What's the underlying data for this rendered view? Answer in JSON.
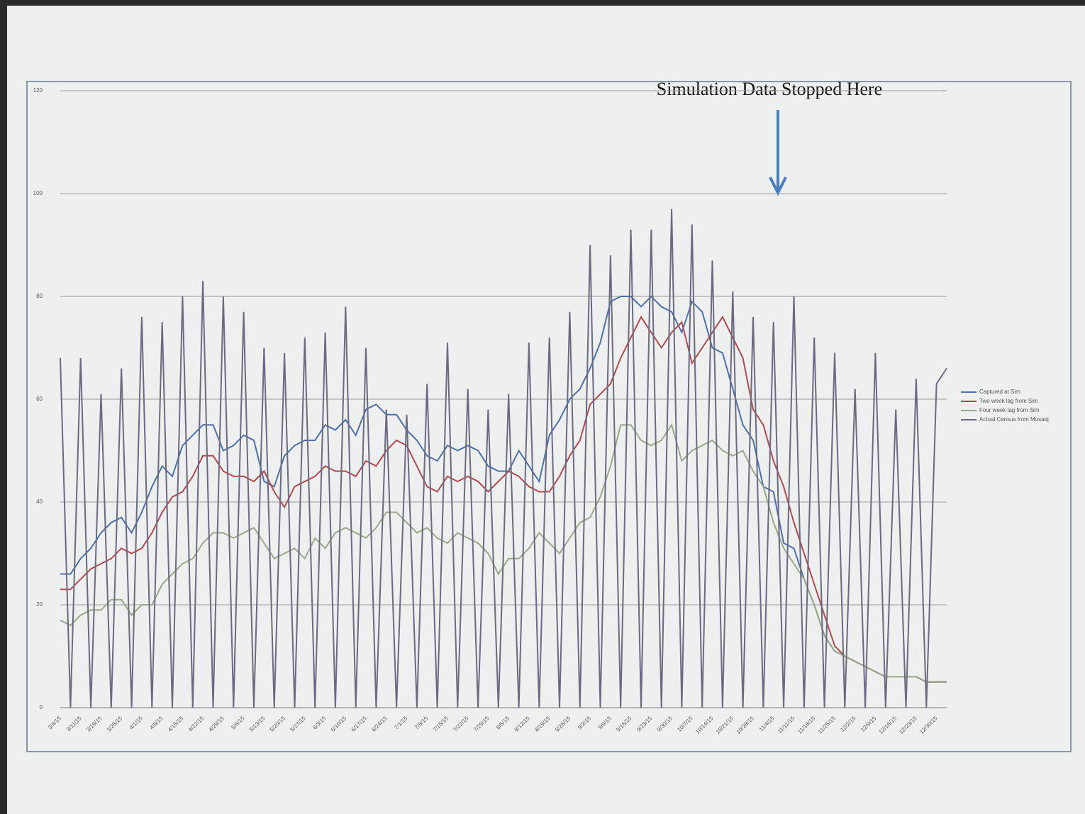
{
  "chart_data": {
    "type": "line",
    "annotation": "Simulation Data Stopped Here",
    "categories": [
      "3/4/15",
      null,
      "3/11/15",
      null,
      "3/18/15",
      null,
      "3/25/15",
      null,
      "4/1/15",
      null,
      "4/8/15",
      null,
      "4/15/15",
      null,
      "4/22/15",
      null,
      "4/29/15",
      null,
      "5/6/15",
      null,
      "5/13/15",
      null,
      "5/20/15",
      null,
      "5/27/15",
      null,
      "6/3/15",
      null,
      "6/10/15",
      null,
      "6/17/15",
      null,
      "6/24/15",
      null,
      "7/1/15",
      null,
      "7/8/15",
      null,
      "7/15/15",
      null,
      "7/22/15",
      null,
      "7/29/15",
      null,
      "8/5/15",
      null,
      "8/12/15",
      null,
      "8/19/15",
      null,
      "8/26/15",
      null,
      "9/2/15",
      null,
      "9/9/15",
      null,
      "9/16/15",
      null,
      "9/23/15",
      null,
      "9/30/15",
      null,
      "10/7/15",
      null,
      "10/14/15",
      null,
      "10/21/15",
      null,
      "10/28/15",
      null,
      "11/4/15",
      null,
      "11/11/15",
      null,
      "11/18/15",
      null,
      "11/25/15",
      null,
      "12/2/15",
      null,
      "12/9/15",
      null,
      "12/16/15",
      null,
      "12/23/15",
      null,
      "12/30/15",
      null
    ],
    "series": [
      {
        "name": "Captured at Sim",
        "color": "#4f6fa8",
        "values": [
          26,
          26,
          29,
          31,
          34,
          36,
          37,
          34,
          38,
          43,
          47,
          45,
          51,
          53,
          55,
          55,
          50,
          51,
          53,
          52,
          44,
          43,
          49,
          51,
          52,
          52,
          55,
          54,
          56,
          53,
          58,
          59,
          57,
          57,
          54,
          52,
          49,
          48,
          51,
          50,
          51,
          50,
          47,
          46,
          46,
          50,
          47,
          44,
          53,
          56,
          60,
          62,
          66,
          71,
          79,
          80,
          80,
          78,
          80,
          78,
          77,
          73,
          79,
          77,
          70,
          69,
          62,
          55,
          52,
          43,
          42,
          32,
          31,
          25,
          20,
          14,
          11,
          10,
          9,
          8,
          7,
          6,
          6,
          6,
          6,
          5,
          5,
          5
        ]
      },
      {
        "name": "Two week lag from Sim",
        "color": "#b04a50",
        "values": [
          23,
          23,
          25,
          27,
          28,
          29,
          31,
          30,
          31,
          34,
          38,
          41,
          42,
          45,
          49,
          49,
          46,
          45,
          45,
          44,
          46,
          42,
          39,
          43,
          44,
          45,
          47,
          46,
          46,
          45,
          48,
          47,
          50,
          52,
          51,
          47,
          43,
          42,
          45,
          44,
          45,
          44,
          42,
          44,
          46,
          45,
          43,
          42,
          42,
          45,
          49,
          52,
          59,
          61,
          63,
          68,
          72,
          76,
          73,
          70,
          73,
          75,
          67,
          70,
          73,
          76,
          72,
          68,
          58,
          55,
          48,
          43,
          36,
          30,
          24,
          18,
          12,
          10,
          9,
          8,
          7,
          6,
          6,
          6,
          6,
          5,
          5,
          5
        ]
      },
      {
        "name": "Four week lag from Sim",
        "color": "#9aa88a",
        "values": [
          17,
          16,
          18,
          19,
          19,
          21,
          21,
          18,
          20,
          20,
          24,
          26,
          28,
          29,
          32,
          34,
          34,
          33,
          34,
          35,
          32,
          29,
          30,
          31,
          29,
          33,
          31,
          34,
          35,
          34,
          33,
          35,
          38,
          38,
          36,
          34,
          35,
          33,
          32,
          34,
          33,
          32,
          30,
          26,
          29,
          29,
          31,
          34,
          32,
          30,
          33,
          36,
          37,
          41,
          47,
          55,
          55,
          52,
          51,
          52,
          55,
          48,
          50,
          51,
          52,
          50,
          49,
          50,
          46,
          43,
          36,
          31,
          28,
          25,
          20,
          14,
          11,
          10,
          9,
          8,
          7,
          6,
          6,
          6,
          6,
          5,
          5,
          5
        ]
      },
      {
        "name": "Actual Census from Mosaiq",
        "color": "#6a6a80",
        "values": [
          68,
          0,
          68,
          0,
          61,
          0,
          66,
          0,
          76,
          0,
          75,
          0,
          80,
          0,
          83,
          0,
          80,
          0,
          77,
          0,
          70,
          0,
          69,
          0,
          72,
          0,
          73,
          0,
          78,
          0,
          70,
          0,
          58,
          0,
          57,
          0,
          63,
          0,
          71,
          0,
          62,
          0,
          58,
          0,
          61,
          0,
          71,
          0,
          72,
          0,
          77,
          0,
          90,
          0,
          88,
          0,
          93,
          0,
          93,
          0,
          97,
          0,
          94,
          0,
          87,
          0,
          81,
          0,
          76,
          0,
          75,
          0,
          80,
          0,
          72,
          0,
          69,
          0,
          62,
          0,
          69,
          0,
          58,
          0,
          64,
          0,
          63,
          66
        ]
      }
    ],
    "ylim": [
      0,
      120
    ],
    "yticks": [
      0,
      20,
      40,
      60,
      80,
      100,
      120
    ],
    "grid": true,
    "legend": "right"
  }
}
